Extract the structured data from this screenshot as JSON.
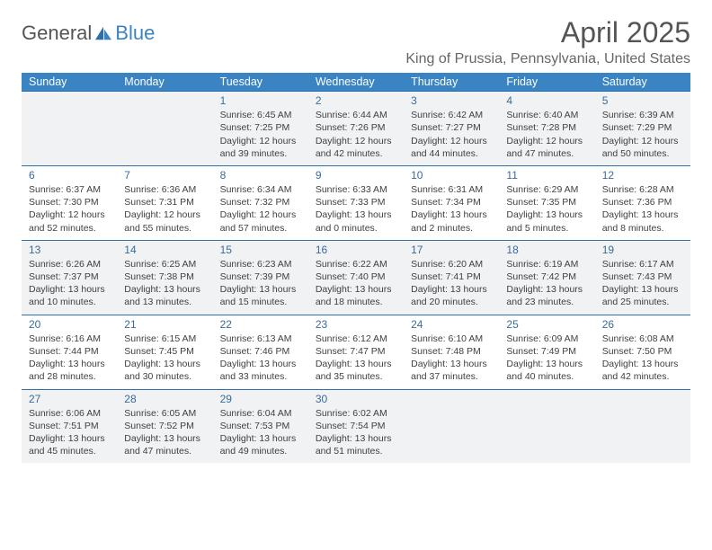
{
  "logo": {
    "general": "General",
    "blue": "Blue"
  },
  "title": "April 2025",
  "location": "King of Prussia, Pennsylvania, United States",
  "headers": [
    "Sunday",
    "Monday",
    "Tuesday",
    "Wednesday",
    "Thursday",
    "Friday",
    "Saturday"
  ],
  "header_bg": "#3a84c4",
  "row_border": "#2f6fa6",
  "alt_row_bg": "#f1f2f3",
  "weeks": [
    [
      null,
      null,
      {
        "n": "1",
        "sr": "6:45 AM",
        "ss": "7:25 PM",
        "dl": "12 hours and 39 minutes."
      },
      {
        "n": "2",
        "sr": "6:44 AM",
        "ss": "7:26 PM",
        "dl": "12 hours and 42 minutes."
      },
      {
        "n": "3",
        "sr": "6:42 AM",
        "ss": "7:27 PM",
        "dl": "12 hours and 44 minutes."
      },
      {
        "n": "4",
        "sr": "6:40 AM",
        "ss": "7:28 PM",
        "dl": "12 hours and 47 minutes."
      },
      {
        "n": "5",
        "sr": "6:39 AM",
        "ss": "7:29 PM",
        "dl": "12 hours and 50 minutes."
      }
    ],
    [
      {
        "n": "6",
        "sr": "6:37 AM",
        "ss": "7:30 PM",
        "dl": "12 hours and 52 minutes."
      },
      {
        "n": "7",
        "sr": "6:36 AM",
        "ss": "7:31 PM",
        "dl": "12 hours and 55 minutes."
      },
      {
        "n": "8",
        "sr": "6:34 AM",
        "ss": "7:32 PM",
        "dl": "12 hours and 57 minutes."
      },
      {
        "n": "9",
        "sr": "6:33 AM",
        "ss": "7:33 PM",
        "dl": "13 hours and 0 minutes."
      },
      {
        "n": "10",
        "sr": "6:31 AM",
        "ss": "7:34 PM",
        "dl": "13 hours and 2 minutes."
      },
      {
        "n": "11",
        "sr": "6:29 AM",
        "ss": "7:35 PM",
        "dl": "13 hours and 5 minutes."
      },
      {
        "n": "12",
        "sr": "6:28 AM",
        "ss": "7:36 PM",
        "dl": "13 hours and 8 minutes."
      }
    ],
    [
      {
        "n": "13",
        "sr": "6:26 AM",
        "ss": "7:37 PM",
        "dl": "13 hours and 10 minutes."
      },
      {
        "n": "14",
        "sr": "6:25 AM",
        "ss": "7:38 PM",
        "dl": "13 hours and 13 minutes."
      },
      {
        "n": "15",
        "sr": "6:23 AM",
        "ss": "7:39 PM",
        "dl": "13 hours and 15 minutes."
      },
      {
        "n": "16",
        "sr": "6:22 AM",
        "ss": "7:40 PM",
        "dl": "13 hours and 18 minutes."
      },
      {
        "n": "17",
        "sr": "6:20 AM",
        "ss": "7:41 PM",
        "dl": "13 hours and 20 minutes."
      },
      {
        "n": "18",
        "sr": "6:19 AM",
        "ss": "7:42 PM",
        "dl": "13 hours and 23 minutes."
      },
      {
        "n": "19",
        "sr": "6:17 AM",
        "ss": "7:43 PM",
        "dl": "13 hours and 25 minutes."
      }
    ],
    [
      {
        "n": "20",
        "sr": "6:16 AM",
        "ss": "7:44 PM",
        "dl": "13 hours and 28 minutes."
      },
      {
        "n": "21",
        "sr": "6:15 AM",
        "ss": "7:45 PM",
        "dl": "13 hours and 30 minutes."
      },
      {
        "n": "22",
        "sr": "6:13 AM",
        "ss": "7:46 PM",
        "dl": "13 hours and 33 minutes."
      },
      {
        "n": "23",
        "sr": "6:12 AM",
        "ss": "7:47 PM",
        "dl": "13 hours and 35 minutes."
      },
      {
        "n": "24",
        "sr": "6:10 AM",
        "ss": "7:48 PM",
        "dl": "13 hours and 37 minutes."
      },
      {
        "n": "25",
        "sr": "6:09 AM",
        "ss": "7:49 PM",
        "dl": "13 hours and 40 minutes."
      },
      {
        "n": "26",
        "sr": "6:08 AM",
        "ss": "7:50 PM",
        "dl": "13 hours and 42 minutes."
      }
    ],
    [
      {
        "n": "27",
        "sr": "6:06 AM",
        "ss": "7:51 PM",
        "dl": "13 hours and 45 minutes."
      },
      {
        "n": "28",
        "sr": "6:05 AM",
        "ss": "7:52 PM",
        "dl": "13 hours and 47 minutes."
      },
      {
        "n": "29",
        "sr": "6:04 AM",
        "ss": "7:53 PM",
        "dl": "13 hours and 49 minutes."
      },
      {
        "n": "30",
        "sr": "6:02 AM",
        "ss": "7:54 PM",
        "dl": "13 hours and 51 minutes."
      },
      null,
      null,
      null
    ]
  ],
  "labels": {
    "sunrise": "Sunrise: ",
    "sunset": "Sunset: ",
    "daylight": "Daylight: "
  }
}
